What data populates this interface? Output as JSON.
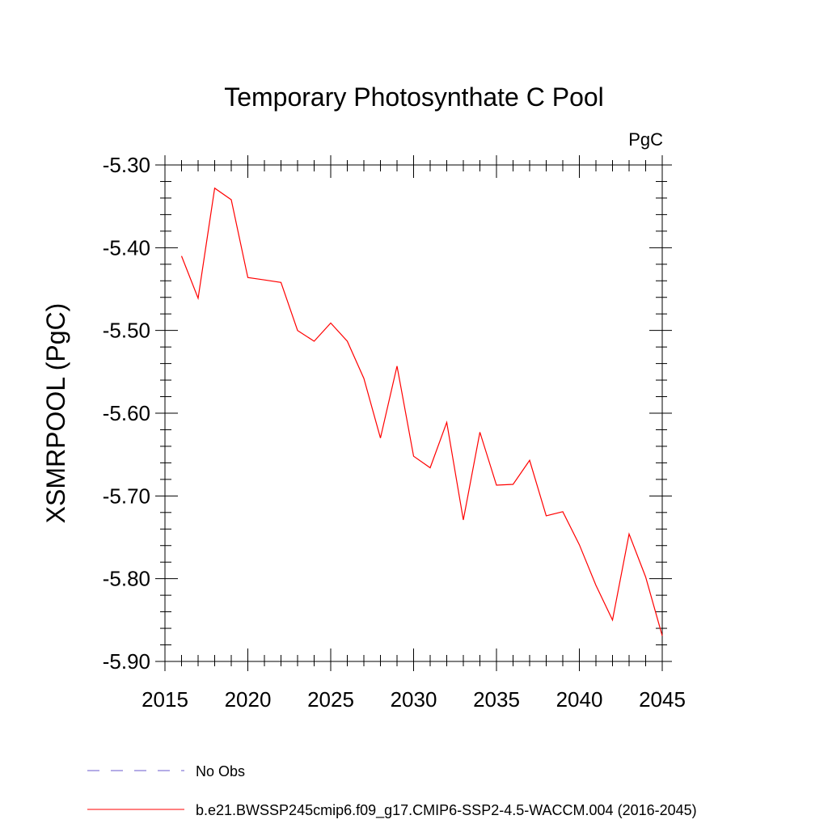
{
  "chart_data": {
    "type": "line",
    "title": "Temporary Photosynthate C Pool",
    "units_label": "PgC",
    "xlabel": "",
    "ylabel": "XSMRPOOL  (PgC)",
    "xlim": [
      2015,
      2045
    ],
    "ylim": [
      -5.9,
      -5.3
    ],
    "x_ticks": [
      2015,
      2020,
      2025,
      2030,
      2035,
      2040,
      2045
    ],
    "x_tick_labels": [
      "2015",
      "2020",
      "2025",
      "2030",
      "2035",
      "2040",
      "2045"
    ],
    "y_ticks": [
      -5.3,
      -5.4,
      -5.5,
      -5.6,
      -5.7,
      -5.8,
      -5.9
    ],
    "y_tick_labels": [
      "-5.30",
      "-5.40",
      "-5.50",
      "-5.60",
      "-5.70",
      "-5.80",
      "-5.90"
    ],
    "grid": false,
    "legend_position": "bottom",
    "series": [
      {
        "name": "b.e21.BWSSP245cmip6.f09_g17.CMIP6-SSP2-4.5-WACCM.004 (2016-2045)",
        "color": "#ff0000",
        "style": "solid",
        "x": [
          2016,
          2017,
          2018,
          2019,
          2020,
          2021,
          2022,
          2023,
          2024,
          2025,
          2026,
          2027,
          2028,
          2029,
          2030,
          2031,
          2032,
          2033,
          2034,
          2035,
          2036,
          2037,
          2038,
          2039,
          2040,
          2041,
          2042,
          2043,
          2044,
          2045
        ],
        "y": [
          -5.41,
          -5.461,
          -5.328,
          -5.342,
          -5.436,
          -5.439,
          -5.442,
          -5.5,
          -5.513,
          -5.491,
          -5.513,
          -5.558,
          -5.63,
          -5.543,
          -5.652,
          -5.666,
          -5.611,
          -5.729,
          -5.623,
          -5.687,
          -5.686,
          -5.657,
          -5.724,
          -5.719,
          -5.759,
          -5.808,
          -5.85,
          -5.746,
          -5.798,
          -5.869
        ]
      }
    ],
    "legend": [
      {
        "label": "No Obs",
        "color": "#6a5acd",
        "style": "dashed"
      },
      {
        "label": "b.e21.BWSSP245cmip6.f09_g17.CMIP6-SSP2-4.5-WACCM.004 (2016-2045)",
        "color": "#ff0000",
        "style": "solid"
      }
    ]
  }
}
